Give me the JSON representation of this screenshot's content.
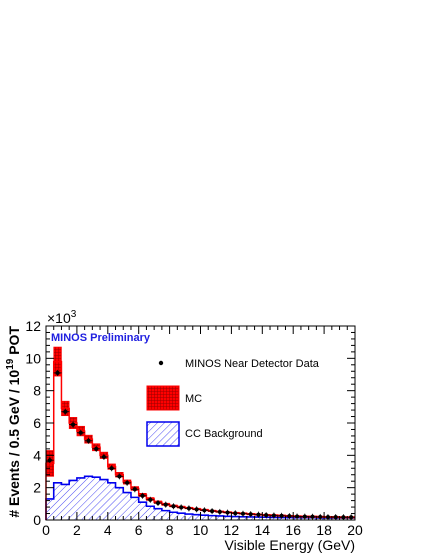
{
  "colors": {
    "mc_fill": "#ff0000",
    "mc_hatch": "#990000",
    "background_line": "#0000ee",
    "data_point": "#000000",
    "preliminary_text": "#2020e0"
  },
  "chart_data": {
    "type": "histogram",
    "title": "",
    "xlabel": "Visible Energy (GeV)",
    "ylabel": {
      "prefix": "# Events / 0.5 GeV / 10",
      "exponent": "19",
      "suffix": " POT"
    },
    "y_multiplier": {
      "base": "×10",
      "exponent": "3"
    },
    "annotation": "MINOS Preliminary",
    "xlim": [
      0,
      20
    ],
    "ylim": [
      0,
      12
    ],
    "x_ticks": [
      "0",
      "2",
      "4",
      "6",
      "8",
      "10",
      "12",
      "14",
      "16",
      "18",
      "20"
    ],
    "y_ticks": [
      "0",
      "2",
      "4",
      "6",
      "8",
      "10",
      "12"
    ],
    "bin_width": 0.5,
    "legend": [
      {
        "key": "data",
        "label": "MINOS Near Detector Data"
      },
      {
        "key": "mc",
        "label": "MC"
      },
      {
        "key": "bg",
        "label": "CC Background"
      }
    ],
    "series": [
      {
        "key": "data",
        "name": "MINOS Near Detector Data",
        "style": "points",
        "x": [
          0.25,
          0.75,
          1.25,
          1.75,
          2.25,
          2.75,
          3.25,
          3.75,
          4.25,
          4.75,
          5.25,
          5.75,
          6.25,
          6.75,
          7.25,
          7.75,
          8.25,
          8.75,
          9.25,
          9.75,
          10.25,
          10.75,
          11.25,
          11.75,
          12.25,
          12.75,
          13.25,
          13.75,
          14.25,
          14.75,
          15.25,
          15.75,
          16.25,
          16.75,
          17.25,
          17.75,
          18.25,
          18.75,
          19.25,
          19.75
        ],
        "values": [
          3.7,
          9.1,
          6.7,
          5.9,
          5.4,
          4.9,
          4.4,
          3.9,
          3.2,
          2.7,
          2.3,
          1.9,
          1.5,
          1.25,
          1.05,
          0.95,
          0.85,
          0.78,
          0.72,
          0.66,
          0.6,
          0.55,
          0.5,
          0.46,
          0.42,
          0.39,
          0.36,
          0.33,
          0.3,
          0.28,
          0.26,
          0.24,
          0.22,
          0.21,
          0.2,
          0.19,
          0.18,
          0.18,
          0.17,
          0.17
        ]
      },
      {
        "key": "mc",
        "name": "MC",
        "style": "error-band",
        "values": [
          3.5,
          9.8,
          6.9,
          6.0,
          5.5,
          5.0,
          4.5,
          4.0,
          3.3,
          2.8,
          2.35,
          1.95,
          1.55,
          1.3,
          1.1,
          0.97,
          0.87,
          0.8,
          0.74,
          0.68,
          0.62,
          0.57,
          0.52,
          0.48,
          0.44,
          0.41,
          0.38,
          0.35,
          0.32,
          0.3,
          0.28,
          0.26,
          0.24,
          0.23,
          0.22,
          0.21,
          0.2,
          0.19,
          0.18,
          0.18
        ],
        "errors": [
          0.8,
          0.9,
          0.45,
          0.35,
          0.3,
          0.25,
          0.22,
          0.2,
          0.17,
          0.15,
          0.13,
          0.12,
          0.1,
          0.09,
          0.08,
          0.07,
          0.06,
          0.06,
          0.05,
          0.05,
          0.05,
          0.04,
          0.04,
          0.04,
          0.04,
          0.04,
          0.03,
          0.03,
          0.03,
          0.03,
          0.03,
          0.03,
          0.03,
          0.03,
          0.03,
          0.03,
          0.03,
          0.03,
          0.03,
          0.03
        ]
      },
      {
        "key": "bg",
        "name": "CC Background",
        "style": "hatched-histogram",
        "values": [
          1.3,
          2.3,
          2.2,
          2.45,
          2.6,
          2.7,
          2.65,
          2.5,
          2.3,
          2.0,
          1.7,
          1.4,
          1.1,
          0.85,
          0.7,
          0.58,
          0.48,
          0.42,
          0.37,
          0.33,
          0.3,
          0.27,
          0.25,
          0.23,
          0.21,
          0.2,
          0.19,
          0.18,
          0.17,
          0.16,
          0.15,
          0.15,
          0.14,
          0.14,
          0.14,
          0.13,
          0.13,
          0.13,
          0.13,
          0.13
        ]
      }
    ]
  }
}
